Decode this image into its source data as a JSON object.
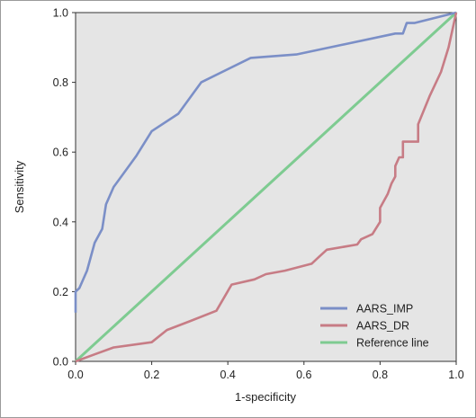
{
  "chart_data": {
    "type": "line",
    "xlabel": "1-specificity",
    "ylabel": "Sensitivity",
    "xlim": [
      0,
      1
    ],
    "ylim": [
      0,
      1
    ],
    "xticks": [
      "0.0",
      "0.2",
      "0.4",
      "0.6",
      "0.8",
      "1.0"
    ],
    "yticks": [
      "0.0",
      "0.2",
      "0.4",
      "0.6",
      "0.8",
      "1.0"
    ],
    "grid": false,
    "legend_position": "bottom-right",
    "series": [
      {
        "name": "AARS_IMP",
        "color": "#7b8fc7",
        "points": [
          [
            0,
            0.14
          ],
          [
            0,
            0.2
          ],
          [
            0.01,
            0.21
          ],
          [
            0.03,
            0.26
          ],
          [
            0.05,
            0.34
          ],
          [
            0.07,
            0.38
          ],
          [
            0.08,
            0.45
          ],
          [
            0.1,
            0.5
          ],
          [
            0.12,
            0.53
          ],
          [
            0.16,
            0.59
          ],
          [
            0.2,
            0.66
          ],
          [
            0.27,
            0.71
          ],
          [
            0.33,
            0.8
          ],
          [
            0.46,
            0.87
          ],
          [
            0.58,
            0.88
          ],
          [
            0.84,
            0.94
          ],
          [
            0.86,
            0.94
          ],
          [
            0.87,
            0.97
          ],
          [
            0.89,
            0.97
          ],
          [
            1,
            1
          ]
        ]
      },
      {
        "name": "AARS_DR",
        "color": "#c77c85",
        "points": [
          [
            0,
            0
          ],
          [
            0.05,
            0.02
          ],
          [
            0.1,
            0.04
          ],
          [
            0.2,
            0.055
          ],
          [
            0.24,
            0.09
          ],
          [
            0.3,
            0.115
          ],
          [
            0.37,
            0.145
          ],
          [
            0.41,
            0.22
          ],
          [
            0.47,
            0.235
          ],
          [
            0.5,
            0.25
          ],
          [
            0.55,
            0.26
          ],
          [
            0.62,
            0.28
          ],
          [
            0.64,
            0.3
          ],
          [
            0.66,
            0.32
          ],
          [
            0.74,
            0.335
          ],
          [
            0.75,
            0.35
          ],
          [
            0.78,
            0.365
          ],
          [
            0.8,
            0.4
          ],
          [
            0.8,
            0.44
          ],
          [
            0.82,
            0.48
          ],
          [
            0.83,
            0.51
          ],
          [
            0.84,
            0.53
          ],
          [
            0.84,
            0.56
          ],
          [
            0.85,
            0.585
          ],
          [
            0.86,
            0.585
          ],
          [
            0.86,
            0.63
          ],
          [
            0.9,
            0.63
          ],
          [
            0.9,
            0.68
          ],
          [
            0.93,
            0.76
          ],
          [
            0.96,
            0.83
          ],
          [
            0.98,
            0.9
          ],
          [
            1,
            1
          ]
        ]
      },
      {
        "name": "Reference line",
        "color": "#7ecb91",
        "points": [
          [
            0,
            0
          ],
          [
            1,
            1
          ]
        ]
      }
    ]
  }
}
